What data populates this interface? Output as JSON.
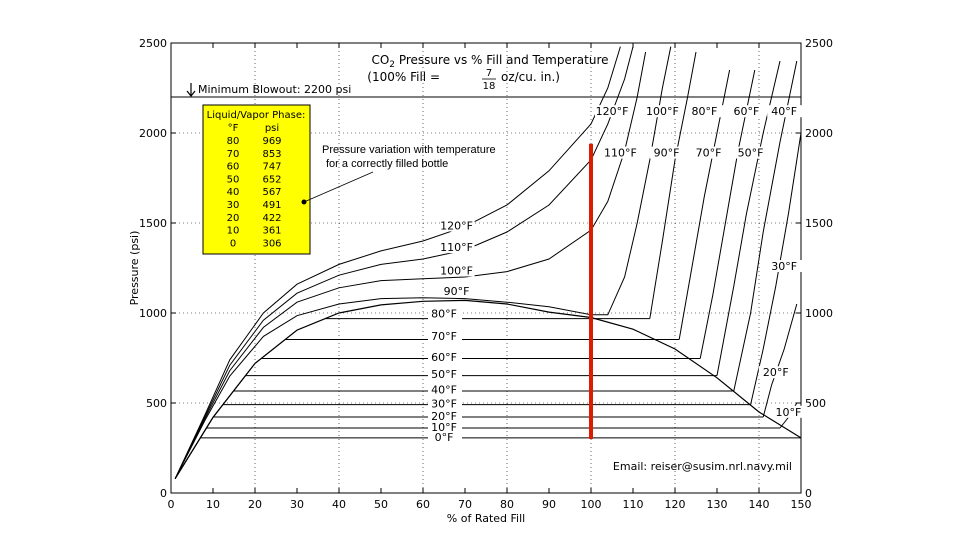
{
  "chart_data": {
    "type": "line",
    "title_prefix": "CO",
    "title_sub": "2",
    "title_rest": " Pressure vs % Fill and Temperature",
    "subtitle_left": "(100% Fill =",
    "subtitle_num": "7",
    "subtitle_den": "18",
    "subtitle_right": "oz/cu. in.)",
    "xlabel": "% of Rated Fill",
    "ylabel": "Pressure (psi)",
    "xlim": [
      0,
      150
    ],
    "ylim": [
      0,
      2500
    ],
    "x_ticks": [
      "0",
      "10",
      "20",
      "30",
      "40",
      "50",
      "60",
      "70",
      "80",
      "90",
      "100",
      "110",
      "120",
      "130",
      "140",
      "150"
    ],
    "y_ticks": [
      "0",
      "500",
      "1000",
      "1500",
      "2000",
      "2500"
    ],
    "grid": "dotted",
    "blowout": {
      "label": "Minimum Blowout: 2200 psi",
      "value": 2200
    },
    "note_line1": "Pressure variation with temperature",
    "note_line2": "for a correctly filled bottle",
    "marker": {
      "x": 100,
      "y_from": 300,
      "y_to": 1940,
      "color": "#e01a00"
    },
    "email": "Email: reiser@susim.nrl.navy.mil",
    "table": {
      "title": "Liquid/Vapor Phase:",
      "col1": "°F",
      "col2": "psi",
      "rows": [
        [
          "80",
          "969"
        ],
        [
          "70",
          "853"
        ],
        [
          "60",
          "747"
        ],
        [
          "50",
          "652"
        ],
        [
          "40",
          "567"
        ],
        [
          "30",
          "491"
        ],
        [
          "20",
          "422"
        ],
        [
          "10",
          "361"
        ],
        [
          "0",
          "306"
        ]
      ],
      "bg": "#ffff00"
    },
    "dome": [
      [
        1,
        80
      ],
      [
        10,
        420
      ],
      [
        20,
        720
      ],
      [
        30,
        905
      ],
      [
        40,
        1000
      ],
      [
        50,
        1045
      ],
      [
        60,
        1065
      ],
      [
        70,
        1070
      ],
      [
        80,
        1050
      ],
      [
        90,
        1005
      ],
      [
        100,
        975
      ],
      [
        110,
        910
      ],
      [
        120,
        800
      ],
      [
        130,
        640
      ],
      [
        140,
        450
      ],
      [
        150,
        306
      ]
    ],
    "series": [
      {
        "label": "0°F",
        "psat": 306,
        "liquid_x": null,
        "liquid": []
      },
      {
        "label": "10°F",
        "psat": 361,
        "liquid_x": 145,
        "liquid": [
          [
            145,
            361
          ],
          [
            147,
            420
          ],
          [
            149,
            500
          ]
        ]
      },
      {
        "label": "20°F",
        "psat": 422,
        "liquid_x": 141,
        "liquid": [
          [
            141,
            422
          ],
          [
            143,
            600
          ],
          [
            146,
            800
          ],
          [
            149,
            1050
          ]
        ]
      },
      {
        "label": "30°F",
        "psat": 491,
        "liquid_x": 138,
        "liquid": [
          [
            138,
            491
          ],
          [
            141,
            800
          ],
          [
            144,
            1150
          ],
          [
            147,
            1550
          ],
          [
            150,
            2000
          ]
        ]
      },
      {
        "label": "40°F",
        "psat": 567,
        "liquid_x": 134,
        "liquid": [
          [
            134,
            567
          ],
          [
            138,
            1000
          ],
          [
            141,
            1450
          ],
          [
            145,
            1950
          ],
          [
            149,
            2400
          ]
        ]
      },
      {
        "label": "50°F",
        "psat": 652,
        "liquid_x": 130,
        "liquid": [
          [
            130,
            652
          ],
          [
            134,
            1150
          ],
          [
            137,
            1550
          ],
          [
            141,
            2000
          ],
          [
            145,
            2400
          ]
        ]
      },
      {
        "label": "60°F",
        "psat": 747,
        "liquid_x": 126,
        "liquid": [
          [
            126,
            747
          ],
          [
            129,
            1100
          ],
          [
            132,
            1500
          ],
          [
            135,
            1900
          ],
          [
            139,
            2350
          ]
        ]
      },
      {
        "label": "70°F",
        "psat": 853,
        "liquid_x": 121,
        "liquid": [
          [
            121,
            853
          ],
          [
            124,
            1250
          ],
          [
            127,
            1650
          ],
          [
            130,
            2000
          ],
          [
            133,
            2350
          ]
        ]
      },
      {
        "label": "80°F",
        "psat": 969,
        "liquid_x": 114,
        "liquid": [
          [
            114,
            969
          ],
          [
            117,
            1400
          ],
          [
            120,
            1850
          ],
          [
            123,
            2200
          ],
          [
            125,
            2450
          ]
        ]
      },
      {
        "label": "90°F",
        "curve": [
          [
            1,
            80
          ],
          [
            8,
            400
          ],
          [
            14,
            650
          ],
          [
            22,
            870
          ],
          [
            30,
            985
          ],
          [
            40,
            1050
          ],
          [
            50,
            1080
          ],
          [
            60,
            1085
          ],
          [
            70,
            1080
          ],
          [
            80,
            1060
          ],
          [
            90,
            1035
          ],
          [
            100,
            990
          ],
          [
            104,
            990
          ],
          [
            108,
            1200
          ],
          [
            111,
            1500
          ],
          [
            114,
            1850
          ],
          [
            117,
            2250
          ],
          [
            119,
            2480
          ]
        ]
      },
      {
        "label": "100°F",
        "curve": [
          [
            1,
            80
          ],
          [
            8,
            410
          ],
          [
            14,
            680
          ],
          [
            22,
            920
          ],
          [
            30,
            1060
          ],
          [
            40,
            1140
          ],
          [
            50,
            1180
          ],
          [
            60,
            1190
          ],
          [
            70,
            1200
          ],
          [
            80,
            1230
          ],
          [
            90,
            1300
          ],
          [
            100,
            1460
          ],
          [
            104,
            1620
          ],
          [
            108,
            1900
          ],
          [
            111,
            2200
          ],
          [
            113,
            2450
          ]
        ]
      },
      {
        "label": "110°F",
        "curve": [
          [
            1,
            80
          ],
          [
            8,
            420
          ],
          [
            14,
            710
          ],
          [
            22,
            960
          ],
          [
            30,
            1110
          ],
          [
            40,
            1210
          ],
          [
            50,
            1270
          ],
          [
            60,
            1300
          ],
          [
            70,
            1350
          ],
          [
            80,
            1450
          ],
          [
            90,
            1600
          ],
          [
            100,
            1850
          ],
          [
            104,
            2050
          ],
          [
            108,
            2300
          ],
          [
            110,
            2480
          ]
        ]
      },
      {
        "label": "120°F",
        "curve": [
          [
            1,
            80
          ],
          [
            8,
            430
          ],
          [
            14,
            740
          ],
          [
            22,
            1000
          ],
          [
            30,
            1160
          ],
          [
            40,
            1270
          ],
          [
            50,
            1345
          ],
          [
            60,
            1400
          ],
          [
            70,
            1480
          ],
          [
            80,
            1600
          ],
          [
            90,
            1790
          ],
          [
            100,
            2050
          ],
          [
            104,
            2250
          ],
          [
            107,
            2480
          ]
        ]
      }
    ]
  }
}
